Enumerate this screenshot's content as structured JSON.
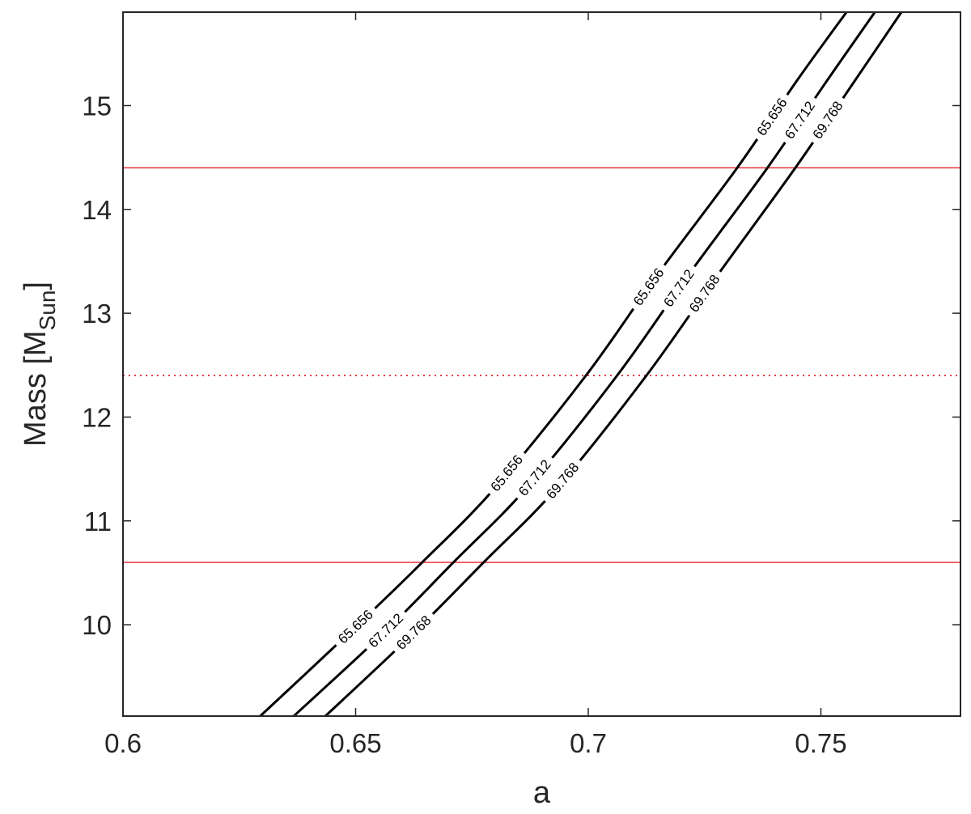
{
  "chart_data": {
    "type": "line",
    "xlabel": "a",
    "ylabel": {
      "main": "Mass [M",
      "sub": "Sun",
      "close": "]"
    },
    "xlim": [
      0.6,
      0.78
    ],
    "ylim": [
      9.12,
      15.9
    ],
    "x_ticks": [
      {
        "value": 0.6,
        "label": "0.6"
      },
      {
        "value": 0.65,
        "label": "0.65"
      },
      {
        "value": 0.7,
        "label": "0.7"
      },
      {
        "value": 0.75,
        "label": "0.75"
      }
    ],
    "y_ticks": [
      {
        "value": 10,
        "label": "10"
      },
      {
        "value": 11,
        "label": "11"
      },
      {
        "value": 12,
        "label": "12"
      },
      {
        "value": 13,
        "label": "13"
      },
      {
        "value": 14,
        "label": "14"
      },
      {
        "value": 15,
        "label": "15"
      }
    ],
    "grid": false,
    "series": [
      {
        "label": "65.656",
        "color": "#000000",
        "points": [
          [
            0.6295,
            9.12
          ],
          [
            0.65,
            9.98
          ],
          [
            0.6643,
            10.6
          ],
          [
            0.68,
            11.32
          ],
          [
            0.6995,
            12.4
          ],
          [
            0.715,
            13.38
          ],
          [
            0.732,
            14.4
          ],
          [
            0.745,
            15.25
          ],
          [
            0.7555,
            15.9
          ]
        ],
        "label_at": [
          0.65,
          0.6825,
          0.713,
          0.7395
        ]
      },
      {
        "label": "67.712",
        "color": "#000000",
        "points": [
          [
            0.6367,
            9.12
          ],
          [
            0.656,
            9.92
          ],
          [
            0.671,
            10.6
          ],
          [
            0.687,
            11.33
          ],
          [
            0.7062,
            12.4
          ],
          [
            0.7217,
            13.38
          ],
          [
            0.7385,
            14.4
          ],
          [
            0.751,
            15.22
          ],
          [
            0.7616,
            15.9
          ]
        ],
        "label_at": [
          0.6565,
          0.6885,
          0.7195,
          0.7455
        ]
      },
      {
        "label": "69.768",
        "color": "#000000",
        "points": [
          [
            0.6435,
            9.12
          ],
          [
            0.662,
            9.9
          ],
          [
            0.6775,
            10.6
          ],
          [
            0.6935,
            11.33
          ],
          [
            0.7125,
            12.4
          ],
          [
            0.728,
            13.38
          ],
          [
            0.7445,
            14.4
          ],
          [
            0.757,
            15.22
          ],
          [
            0.7673,
            15.9
          ]
        ],
        "label_at": [
          0.6625,
          0.6945,
          0.725,
          0.7515
        ]
      }
    ],
    "hlines": [
      {
        "y": 14.4,
        "style": "solid",
        "color": "#e8202a"
      },
      {
        "y": 12.4,
        "style": "dotted",
        "color": "#e8202a"
      },
      {
        "y": 10.6,
        "style": "solid",
        "color": "#e8202a"
      }
    ]
  }
}
